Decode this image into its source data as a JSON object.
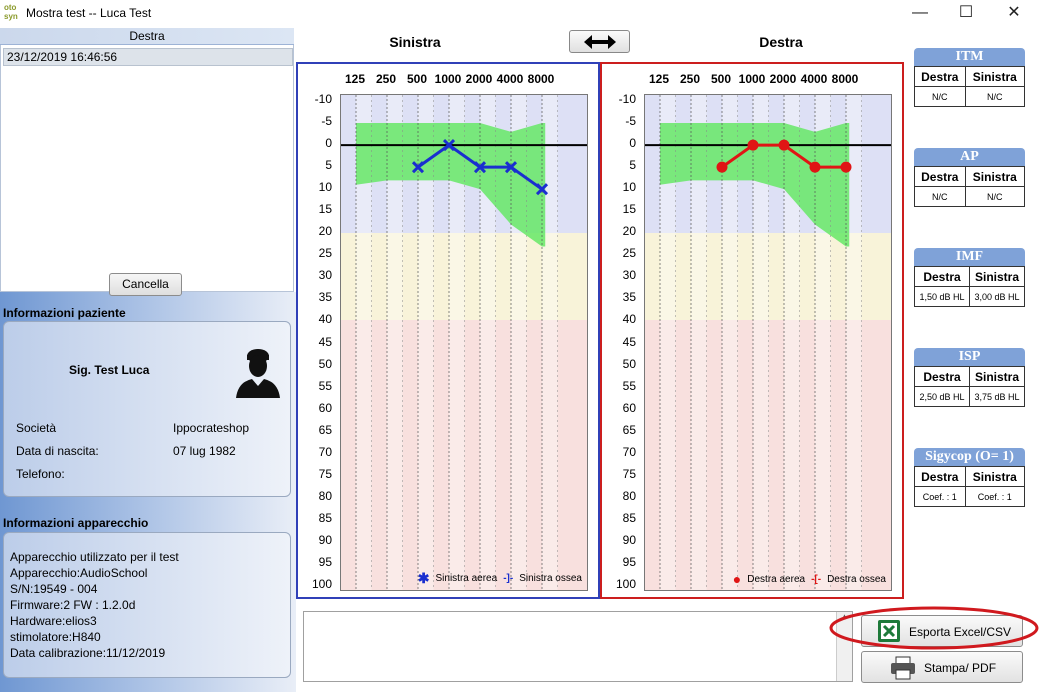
{
  "window": {
    "title": "Mostra test -- Luca Test",
    "app_icon_text": "oto\nsyn"
  },
  "left": {
    "list_header": "Destra",
    "list_items": [
      "23/12/2019 16:46:56"
    ],
    "cancel_label": "Cancella",
    "patient_section": "Informazioni paziente",
    "patient_name": "Sig. Test Luca",
    "fields": [
      {
        "label": "Società",
        "value": "Ippocrateshop"
      },
      {
        "label": "Data di nascita:",
        "value": "07 lug 1982"
      },
      {
        "label": "Telefono:",
        "value": ""
      }
    ],
    "device_section": "Informazioni apparecchio",
    "device_lines": [
      "Apparecchio utilizzato per il test",
      "Apparecchio:AudioSchool",
      "S/N:19549 - 004",
      "Firmware:2 FW : 1.2.0d",
      "Hardware:elios3",
      "stimolatore:H840",
      "Data calibrazione:11/12/2019"
    ]
  },
  "graphs": {
    "left_title": "Sinistra",
    "right_title": "Destra",
    "swap_icon": "left-right-arrow-icon",
    "freq_labels": [
      "125",
      "250",
      "500",
      "1000",
      "2000",
      "4000",
      "8000"
    ],
    "db_labels": [
      "-10",
      "-5",
      "0",
      "5",
      "10",
      "15",
      "20",
      "25",
      "30",
      "35",
      "40",
      "45",
      "50",
      "55",
      "60",
      "65",
      "70",
      "75",
      "80",
      "85",
      "90",
      "95",
      "100"
    ],
    "left_legend": {
      "air": "Sinistra aerea",
      "bone": "Sinistra ossea"
    },
    "right_legend": {
      "air": "Destra aerea",
      "bone": "Destra ossea"
    },
    "colors": {
      "left": "#1a2fcf",
      "right": "#e01515",
      "normal_band": "#66e866"
    }
  },
  "chart_data": [
    {
      "type": "line",
      "title": "Sinistra",
      "x": [
        500,
        1000,
        2000,
        4000,
        8000
      ],
      "series": [
        {
          "name": "Sinistra aerea",
          "values": [
            5,
            0,
            5,
            5,
            10
          ]
        }
      ],
      "x_scale": "log",
      "ylim": [
        -10,
        100
      ],
      "y_inverted": true
    },
    {
      "type": "line",
      "title": "Destra",
      "x": [
        500,
        1000,
        2000,
        4000,
        8000
      ],
      "series": [
        {
          "name": "Destra aerea",
          "values": [
            5,
            0,
            0,
            5,
            5
          ]
        }
      ],
      "x_scale": "log",
      "ylim": [
        -10,
        100
      ],
      "y_inverted": true
    }
  ],
  "right_panels": [
    {
      "title": "ITM",
      "col1": "Destra",
      "col2": "Sinistra",
      "v1": "N/C",
      "v2": "N/C"
    },
    {
      "title": "AP",
      "col1": "Destra",
      "col2": "Sinistra",
      "v1": "N/C",
      "v2": "N/C"
    },
    {
      "title": "IMF",
      "col1": "Destra",
      "col2": "Sinistra",
      "v1": "1,50 dB HL",
      "v2": "3,00 dB HL"
    },
    {
      "title": "ISP",
      "col1": "Destra",
      "col2": "Sinistra",
      "v1": "2,50 dB HL",
      "v2": "3,75 dB HL"
    },
    {
      "title": "Sigycop (O= 1)",
      "col1": "Destra",
      "col2": "Sinistra",
      "v1": "Coef. : 1",
      "v2": "Coef. : 1"
    }
  ],
  "buttons": {
    "export": "Esporta Excel/CSV",
    "print": "Stampa/ PDF"
  },
  "notes": {
    "value": ""
  }
}
